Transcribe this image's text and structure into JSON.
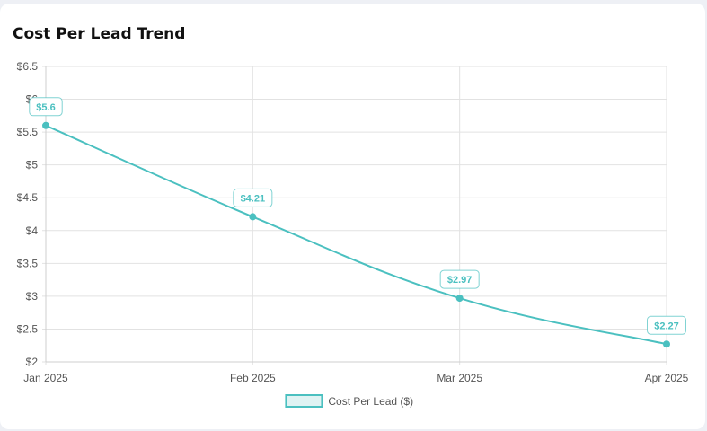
{
  "card": {
    "title": "Cost Per Lead Trend"
  },
  "chart_data": {
    "type": "line",
    "title": "Cost Per Lead Trend",
    "categories": [
      "Jan 2025",
      "Feb 2025",
      "Mar 2025",
      "Apr 2025"
    ],
    "series": [
      {
        "name": "Cost Per Lead ($)",
        "values": [
          5.6,
          4.21,
          2.97,
          2.27
        ]
      }
    ],
    "data_labels": [
      "$5.6",
      "$4.21",
      "$2.97",
      "$2.27"
    ],
    "y_ticks": [
      "$2",
      "$2.5",
      "$3",
      "$3.5",
      "$4",
      "$4.5",
      "$5",
      "$5.5",
      "$6",
      "$6.5"
    ],
    "ylim": [
      2,
      6.5
    ],
    "grid": true,
    "legend": "bottom",
    "colors": {
      "line": "#4bc0c0",
      "fill": "#dff3f3",
      "grid": "#e2e2e2"
    }
  }
}
